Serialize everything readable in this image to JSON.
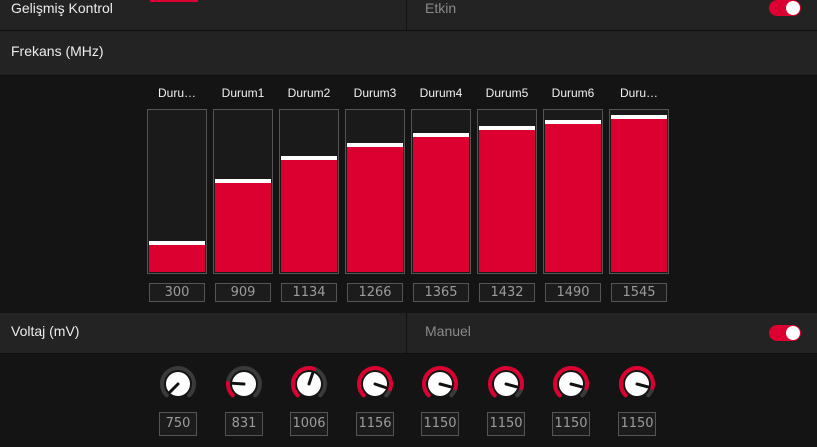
{
  "advanced": {
    "label": "Gelişmiş Kontrol",
    "state_text": "Etkin",
    "enabled": true
  },
  "frequency": {
    "label": "Frekans (MHz)",
    "max_value": 1600,
    "states": [
      {
        "label": "Duru…",
        "value": "300"
      },
      {
        "label": "Durum1",
        "value": "909"
      },
      {
        "label": "Durum2",
        "value": "1134"
      },
      {
        "label": "Durum3",
        "value": "1266"
      },
      {
        "label": "Durum4",
        "value": "1365"
      },
      {
        "label": "Durum5",
        "value": "1432"
      },
      {
        "label": "Durum6",
        "value": "1490"
      },
      {
        "label": "Duru…",
        "value": "1545"
      }
    ]
  },
  "voltage": {
    "label": "Voltaj (mV)",
    "mode_text": "Manuel",
    "enabled": true,
    "range": [
      750,
      1200
    ],
    "values": [
      "750",
      "831",
      "1006",
      "1156",
      "1150",
      "1150",
      "1150",
      "1150"
    ]
  },
  "colors": {
    "accent": "#dc0030",
    "panel": "#232323",
    "background": "#141414"
  }
}
